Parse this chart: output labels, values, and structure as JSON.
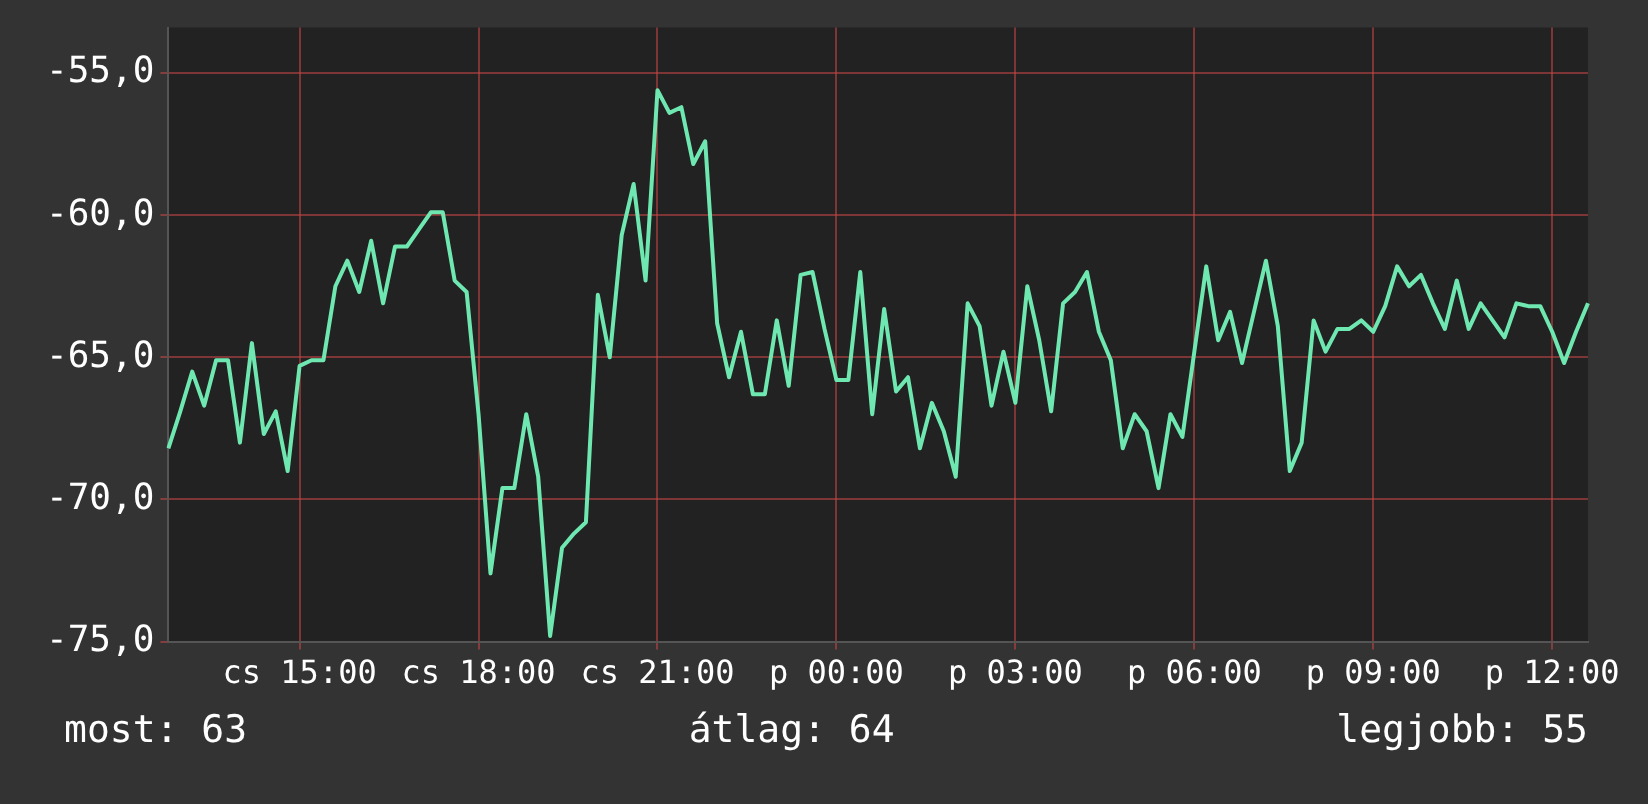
{
  "chart_data": {
    "type": "line",
    "categories": [
      null,
      null,
      null,
      null,
      null,
      null,
      null,
      null,
      null,
      null,
      null,
      "cs 15:00",
      null,
      null,
      null,
      null,
      null,
      null,
      null,
      null,
      null,
      null,
      null,
      null,
      null,
      null,
      "cs 18:00",
      null,
      null,
      null,
      null,
      null,
      null,
      null,
      null,
      null,
      null,
      null,
      null,
      null,
      null,
      "cs 21:00",
      null,
      null,
      null,
      null,
      null,
      null,
      null,
      null,
      null,
      null,
      null,
      null,
      null,
      null,
      "p 00:00",
      null,
      null,
      null,
      null,
      null,
      null,
      null,
      null,
      null,
      null,
      null,
      null,
      null,
      null,
      "p 03:00",
      null,
      null,
      null,
      null,
      null,
      null,
      null,
      null,
      null,
      null,
      null,
      null,
      null,
      null,
      "p 06:00",
      null,
      null,
      null,
      null,
      null,
      null,
      null,
      null,
      null,
      null,
      null,
      null,
      null,
      null,
      "p 09:00",
      null,
      null,
      null,
      null,
      null,
      null,
      null,
      null,
      null,
      null,
      null,
      null,
      null,
      null,
      "p 12:00",
      null,
      null,
      null
    ],
    "series": [
      {
        "color": "#6ee8b0",
        "values": [
          -68.2,
          -66.9,
          -65.5,
          -66.7,
          -65.1,
          -65.1,
          -68.0,
          -64.5,
          -67.7,
          -66.9,
          -69.0,
          -65.3,
          -65.1,
          -65.1,
          -62.5,
          -61.6,
          -62.7,
          -60.9,
          -63.1,
          -61.1,
          -61.1,
          -60.5,
          -59.9,
          -59.9,
          -62.3,
          -62.7,
          -67.0,
          -72.6,
          -69.6,
          -69.6,
          -67.0,
          -69.2,
          -74.8,
          -71.7,
          -71.2,
          -70.8,
          -62.8,
          -65.0,
          -60.7,
          -58.9,
          -62.3,
          -55.6,
          -56.4,
          -56.2,
          -58.2,
          -57.4,
          -63.8,
          -65.7,
          -64.1,
          -66.3,
          -66.3,
          -63.7,
          -66.0,
          -62.1,
          -62.0,
          -64.0,
          -65.8,
          -65.8,
          -62.0,
          -67.0,
          -63.3,
          -66.2,
          -65.7,
          -68.2,
          -66.6,
          -67.6,
          -69.2,
          -63.1,
          -63.9,
          -66.7,
          -64.8,
          -66.6,
          -62.5,
          -64.4,
          -66.9,
          -63.1,
          -62.7,
          -62.0,
          -64.1,
          -65.1,
          -68.2,
          -67.0,
          -67.6,
          -69.6,
          -67.0,
          -67.8,
          -64.8,
          -61.8,
          -64.4,
          -63.4,
          -65.2,
          -63.4,
          -61.6,
          -63.9,
          -69.0,
          -68.0,
          -63.7,
          -64.8,
          -64.0,
          -64.0,
          -63.7,
          -64.1,
          -63.2,
          -61.8,
          -62.5,
          -62.1,
          -63.1,
          -64.0,
          -62.3,
          -64.0,
          -63.1,
          -63.7,
          -64.3,
          -63.1,
          -63.2,
          -63.2,
          -64.1,
          -65.2,
          -64.1,
          -63.1
        ]
      }
    ],
    "ylim": [
      -75,
      -53.4
    ],
    "yticks": [
      {
        "value": -75,
        "label": "-75,0"
      },
      {
        "value": -70,
        "label": "-70,0"
      },
      {
        "value": -65,
        "label": "-65,0"
      },
      {
        "value": -60,
        "label": "-60,0"
      },
      {
        "value": -55,
        "label": "-55,0"
      }
    ],
    "grid": true,
    "legend": false,
    "annotations": [
      "most: 63",
      "átlag: 64",
      "legjobb: 55"
    ]
  }
}
